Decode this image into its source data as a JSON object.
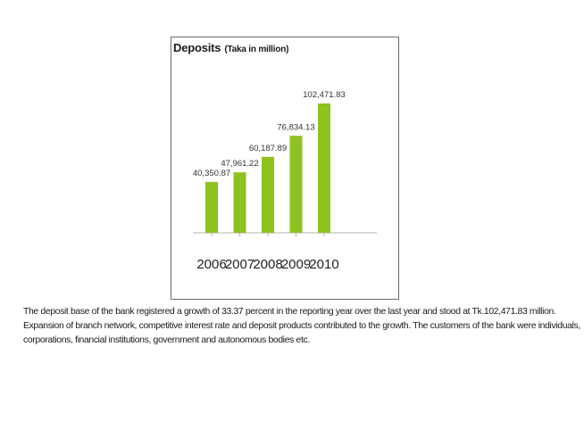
{
  "chart_data": {
    "type": "bar",
    "title": "Deposits",
    "subtitle": "(Taka in million)",
    "categories": [
      "2006",
      "2007",
      "2008",
      "2009",
      "2010"
    ],
    "values": [
      40350.87,
      47961.22,
      60187.89,
      76834.13,
      102471.83
    ],
    "value_labels": [
      "40,350.87",
      "47,961.22",
      "60,187.89",
      "76,834.13",
      "102,471.83"
    ],
    "bar_color": "#8dc21f",
    "xlabel": "",
    "ylabel": "",
    "ylim": [
      0,
      110000
    ],
    "grid": false
  },
  "caption": {
    "lines": [
      "The deposit base of the bank registered a growth of 33.37 percent in the reporting year over the last year and stood at Tk.102,471.83 million.",
      "Expansion of branch network, competitive interest rate and deposit products contributed to the growth. The customers of the bank were individuals,",
      "corporations, financial institutions, government and autonomous bodies etc."
    ]
  }
}
